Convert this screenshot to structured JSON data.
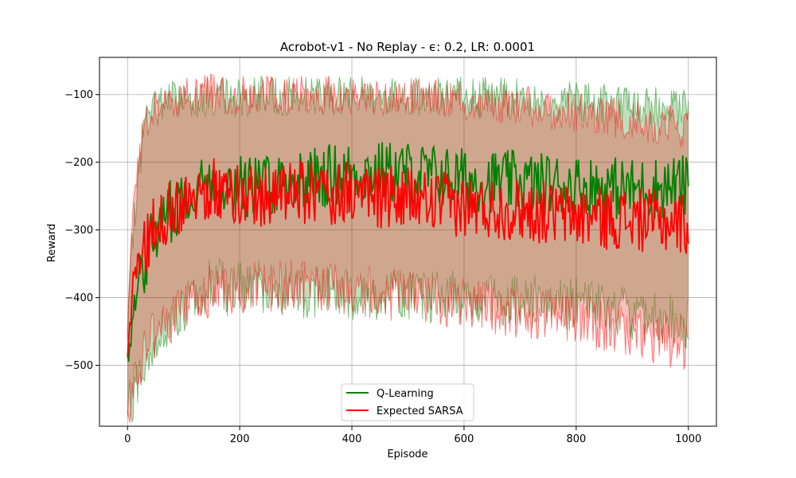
{
  "chart_data": {
    "type": "line",
    "title": "Acrobot-v1 - No Replay - ϵ: 0.2, LR: 0.0001",
    "xlabel": "Episode",
    "ylabel": "Reward",
    "xlim": [
      -50,
      1050
    ],
    "ylim": [
      -590,
      -45
    ],
    "xticks": [
      0,
      200,
      400,
      600,
      800,
      1000
    ],
    "yticks": [
      -100,
      -200,
      -300,
      -400,
      -500
    ],
    "xtick_labels": [
      "0",
      "200",
      "400",
      "600",
      "800",
      "1000"
    ],
    "ytick_labels": [
      "−100",
      "−200",
      "−300",
      "−400",
      "−500"
    ],
    "grid": true,
    "legend_position": "lower center",
    "series": [
      {
        "name": "Q-Learning",
        "color": "#008000",
        "band_color": "#008000",
        "episodes": 1000,
        "mean_profile": [
          [
            0,
            -500
          ],
          [
            10,
            -420
          ],
          [
            25,
            -360
          ],
          [
            50,
            -300
          ],
          [
            80,
            -270
          ],
          [
            110,
            -240
          ],
          [
            150,
            -230
          ],
          [
            200,
            -235
          ],
          [
            300,
            -225
          ],
          [
            400,
            -215
          ],
          [
            500,
            -215
          ],
          [
            600,
            -225
          ],
          [
            700,
            -230
          ],
          [
            800,
            -235
          ],
          [
            900,
            -240
          ],
          [
            1000,
            -235
          ]
        ],
        "band_upper_profile": [
          [
            0,
            -470
          ],
          [
            10,
            -300
          ],
          [
            30,
            -140
          ],
          [
            60,
            -110
          ],
          [
            100,
            -105
          ],
          [
            400,
            -100
          ],
          [
            700,
            -105
          ],
          [
            1000,
            -120
          ]
        ],
        "band_lower_profile": [
          [
            0,
            -560
          ],
          [
            10,
            -545
          ],
          [
            30,
            -500
          ],
          [
            60,
            -450
          ],
          [
            100,
            -420
          ],
          [
            150,
            -380
          ],
          [
            300,
            -390
          ],
          [
            600,
            -400
          ],
          [
            800,
            -410
          ],
          [
            1000,
            -440
          ]
        ]
      },
      {
        "name": "Expected SARSA",
        "color": "#ff0000",
        "band_color": "#ff0000",
        "episodes": 1000,
        "mean_profile": [
          [
            0,
            -500
          ],
          [
            10,
            -380
          ],
          [
            25,
            -330
          ],
          [
            50,
            -290
          ],
          [
            80,
            -270
          ],
          [
            110,
            -245
          ],
          [
            150,
            -240
          ],
          [
            200,
            -250
          ],
          [
            300,
            -245
          ],
          [
            400,
            -245
          ],
          [
            500,
            -255
          ],
          [
            600,
            -265
          ],
          [
            700,
            -270
          ],
          [
            800,
            -280
          ],
          [
            900,
            -285
          ],
          [
            1000,
            -290
          ]
        ],
        "band_upper_profile": [
          [
            0,
            -470
          ],
          [
            10,
            -260
          ],
          [
            30,
            -150
          ],
          [
            60,
            -110
          ],
          [
            100,
            -100
          ],
          [
            400,
            -100
          ],
          [
            700,
            -115
          ],
          [
            1000,
            -150
          ]
        ],
        "band_lower_profile": [
          [
            0,
            -560
          ],
          [
            10,
            -540
          ],
          [
            30,
            -470
          ],
          [
            60,
            -440
          ],
          [
            100,
            -420
          ],
          [
            150,
            -390
          ],
          [
            300,
            -380
          ],
          [
            600,
            -410
          ],
          [
            800,
            -430
          ],
          [
            1000,
            -470
          ]
        ]
      }
    ]
  }
}
